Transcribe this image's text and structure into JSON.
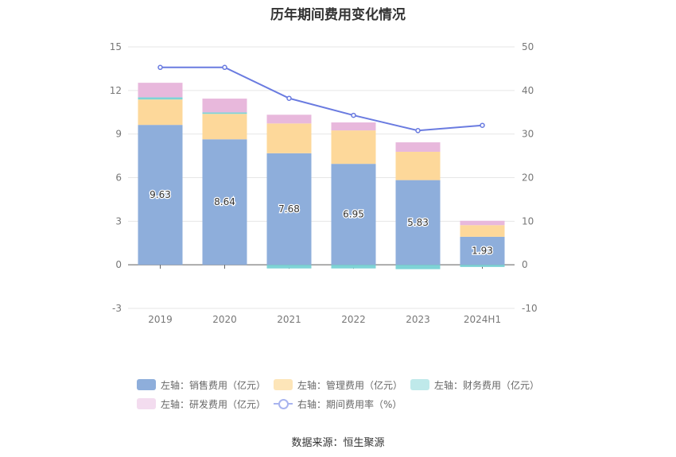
{
  "title": "历年期间费用变化情况",
  "source": "数据来源：恒生聚源",
  "colors": {
    "sales": "#8eaedb",
    "mgmt": "#fdd89a",
    "finance": "#7ed3d6",
    "rnd": "#e8b8dc",
    "rate_line": "#6a7be0"
  },
  "legend": [
    {
      "label": "左轴：销售费用（亿元）",
      "key": "sales",
      "kind": "bar"
    },
    {
      "label": "左轴：管理费用（亿元）",
      "key": "mgmt",
      "kind": "bar"
    },
    {
      "label": "左轴：财务费用（亿元）",
      "key": "finance",
      "kind": "bar"
    },
    {
      "label": "左轴：研发费用（亿元）",
      "key": "rnd",
      "kind": "bar"
    },
    {
      "label": "右轴：期间费用率（%）",
      "key": "rate",
      "kind": "line"
    }
  ],
  "chart_data": {
    "type": "bar",
    "title": "历年期间费用变化情况",
    "categories": [
      "2019",
      "2020",
      "2021",
      "2022",
      "2023",
      "2024H1"
    ],
    "y_left_ticks": [
      "15",
      "12",
      "9",
      "6",
      "3",
      "0",
      "-3"
    ],
    "y_right_ticks": [
      "50",
      "40",
      "30",
      "20",
      "10",
      "0",
      "-10"
    ],
    "y_left_range": [
      -3,
      15
    ],
    "y_right_range": [
      -10,
      50
    ],
    "series": [
      {
        "name": "左轴：销售费用（亿元）",
        "axis": "left",
        "stack": "cost",
        "values": [
          9.63,
          8.64,
          7.68,
          6.95,
          5.83,
          1.93
        ],
        "labels": [
          "9.63",
          "8.64",
          "7.68",
          "6.95",
          "5.83",
          "1.93"
        ]
      },
      {
        "name": "左轴：管理费用（亿元）",
        "axis": "left",
        "stack": "cost",
        "values": [
          1.75,
          1.75,
          2.05,
          2.3,
          1.95,
          0.8
        ]
      },
      {
        "name": "左轴：财务费用（亿元）",
        "axis": "left",
        "stack": "cost",
        "values": [
          0.15,
          0.1,
          -0.25,
          -0.25,
          -0.3,
          -0.15
        ]
      },
      {
        "name": "左轴：研发费用（亿元）",
        "axis": "left",
        "stack": "cost",
        "values": [
          1.0,
          0.95,
          0.6,
          0.55,
          0.65,
          0.3
        ]
      },
      {
        "name": "右轴：期间费用率（%）",
        "axis": "right",
        "type": "line",
        "values": [
          45.3,
          45.3,
          38.2,
          34.3,
          30.8,
          32.0
        ]
      }
    ],
    "grid": true,
    "legend_position": "bottom"
  }
}
